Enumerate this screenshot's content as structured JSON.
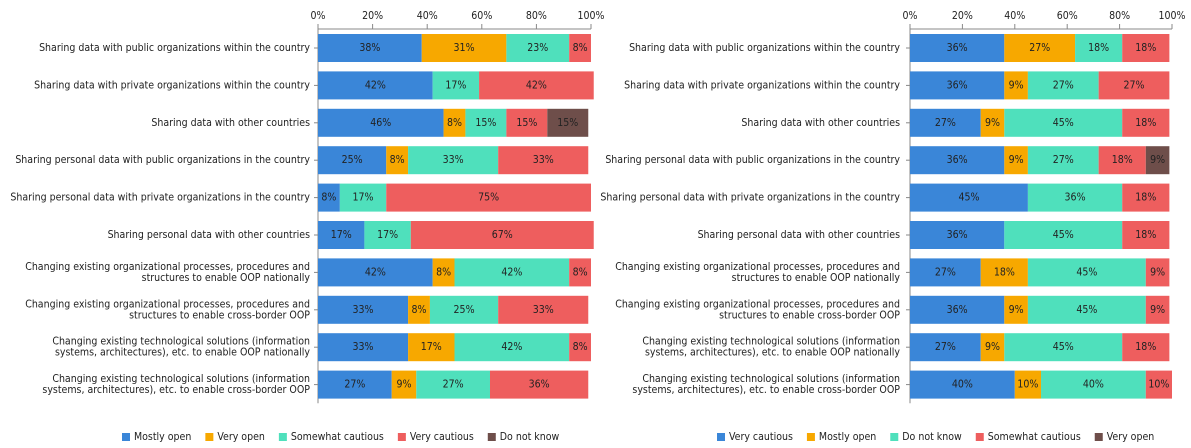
{
  "chart_data": [
    {
      "type": "stacked-barh",
      "categories": [
        "Sharing data with public organizations within the country",
        "Sharing data with private organizations within the country",
        "Sharing data with other countries",
        "Sharing personal data with public organizations in the country",
        "Sharing personal data with private organizations in the country",
        "Sharing personal data with other countries",
        "Changing existing organizational processes, procedures and structures to enable OOP nationally",
        "Changing existing organizational processes, procedures and structures to enable cross-border OOP",
        "Changing existing technological solutions (information systems, architectures), etc. to enable OOP nationally",
        "Changing existing technological solutions (information systems, architectures), etc. to enable cross-border OOP"
      ],
      "series": [
        {
          "name": "Mostly open",
          "color": "#3a86d8",
          "values": [
            38,
            42,
            46,
            25,
            8,
            17,
            42,
            33,
            33,
            27
          ],
          "value_labels": [
            "38%",
            "42%",
            "46%",
            "25%",
            "8%",
            "17%",
            "42%",
            "33%",
            "33%",
            "27%"
          ]
        },
        {
          "name": "Very open",
          "color": "#f7a800",
          "values": [
            31,
            null,
            8,
            8,
            null,
            null,
            8,
            8,
            17,
            9
          ],
          "value_labels": [
            "31%",
            null,
            "8%",
            "8%",
            null,
            null,
            "8%",
            "8%",
            "17%",
            "9%"
          ]
        },
        {
          "name": "Somewhat cautious",
          "color": "#4fe0bc",
          "values": [
            23,
            17,
            15,
            33,
            17,
            17,
            42,
            25,
            42,
            27
          ],
          "value_labels": [
            "23%",
            "17%",
            "15%",
            "33%",
            "17%",
            "17%",
            "42%",
            "25%",
            "42%",
            "27%"
          ]
        },
        {
          "name": "Very cautious",
          "color": "#ee5e5e",
          "values": [
            8,
            42,
            15,
            33,
            75,
            67,
            8,
            33,
            8,
            36
          ],
          "value_labels": [
            "8%",
            "42%",
            "15%",
            "33%",
            "75%",
            "67%",
            "8%",
            "33%",
            "8%",
            "36%"
          ]
        },
        {
          "name": "Do not know",
          "color": "#6e4e4a",
          "values": [
            null,
            null,
            15,
            null,
            null,
            null,
            null,
            null,
            null,
            null
          ],
          "value_labels": [
            null,
            null,
            "15%",
            null,
            null,
            null,
            null,
            null,
            null,
            null
          ]
        }
      ],
      "xlim": [
        0,
        100
      ],
      "xticks": [
        {
          "value": 0,
          "label": "0%"
        },
        {
          "value": 20,
          "label": "20%"
        },
        {
          "value": 40,
          "label": "40%"
        },
        {
          "value": 60,
          "label": "60%"
        },
        {
          "value": 80,
          "label": "80%"
        },
        {
          "value": 100,
          "label": "100%"
        }
      ],
      "legend": "bottom"
    },
    {
      "type": "stacked-barh",
      "categories": [
        "Sharing data with public organizations within the country",
        "Sharing data with private organizations within the country",
        "Sharing data with other countries",
        "Sharing personal data with public organizations in the country",
        "Sharing personal data with private organizations in the country",
        "Sharing personal data with other countries",
        "Changing existing organizational processes, procedures and structures to enable OOP nationally",
        "Changing existing organizational processes, procedures and structures to enable cross-border OOP",
        "Changing existing technological solutions (information systems, architectures), etc. to enable OOP nationally",
        "Changing existing technological solutions (information systems, architectures), etc. to enable cross-border OOP"
      ],
      "series": [
        {
          "name": "Very cautious",
          "color": "#3a86d8",
          "values": [
            36,
            36,
            27,
            36,
            45,
            36,
            27,
            36,
            27,
            40
          ],
          "value_labels": [
            "36%",
            "36%",
            "27%",
            "36%",
            "45%",
            "36%",
            "27%",
            "36%",
            "27%",
            "40%"
          ]
        },
        {
          "name": "Mostly open",
          "color": "#f7a800",
          "values": [
            27,
            9,
            9,
            9,
            null,
            null,
            18,
            9,
            9,
            10
          ],
          "value_labels": [
            "27%",
            "9%",
            "9%",
            "9%",
            null,
            null,
            "18%",
            "9%",
            "9%",
            "10%"
          ]
        },
        {
          "name": "Do not know",
          "color": "#4fe0bc",
          "values": [
            18,
            27,
            45,
            27,
            36,
            45,
            45,
            45,
            45,
            40
          ],
          "value_labels": [
            "18%",
            "27%",
            "45%",
            "27%",
            "36%",
            "45%",
            "45%",
            "45%",
            "45%",
            "40%"
          ]
        },
        {
          "name": "Somewhat cautious",
          "color": "#ee5e5e",
          "values": [
            18,
            27,
            18,
            18,
            18,
            18,
            9,
            9,
            18,
            10
          ],
          "value_labels": [
            "18%",
            "27%",
            "18%",
            "18%",
            "18%",
            "18%",
            "9%",
            "9%",
            "18%",
            "10%"
          ]
        },
        {
          "name": "Very open",
          "color": "#6e4e4a",
          "values": [
            null,
            null,
            null,
            9,
            null,
            null,
            null,
            null,
            null,
            null
          ],
          "value_labels": [
            null,
            null,
            null,
            "9%",
            null,
            null,
            null,
            null,
            null,
            null
          ]
        }
      ],
      "xlim": [
        0,
        100
      ],
      "xticks": [
        {
          "value": 0,
          "label": "0%"
        },
        {
          "value": 20,
          "label": "20%"
        },
        {
          "value": 40,
          "label": "40%"
        },
        {
          "value": 60,
          "label": "60%"
        },
        {
          "value": 80,
          "label": "80%"
        },
        {
          "value": 100,
          "label": "100%"
        }
      ],
      "legend": "bottom"
    }
  ]
}
